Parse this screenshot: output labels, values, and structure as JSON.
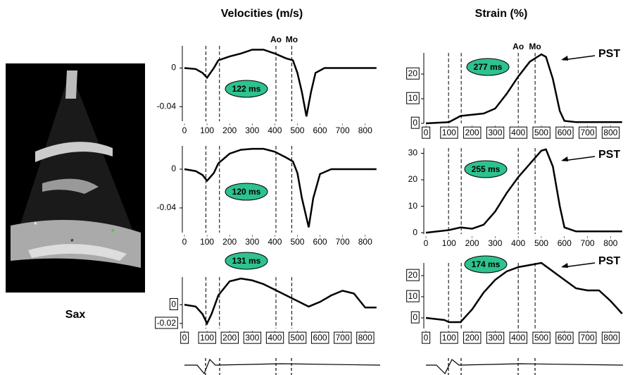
{
  "image_label": "Sax",
  "chart_data": [
    {
      "type": "line",
      "title": "Velocities (m/s)",
      "x": [
        0,
        50,
        80,
        100,
        130,
        150,
        200,
        250,
        300,
        350,
        400,
        450,
        480,
        500,
        520,
        540,
        560,
        580,
        620,
        700,
        800,
        850
      ],
      "series": [
        {
          "color": "#000000",
          "values": [
            0,
            -0.001,
            -0.005,
            -0.01,
            0,
            0.008,
            0.012,
            0.015,
            0.019,
            0.019,
            0.015,
            0.01,
            0.008,
            -0.005,
            -0.025,
            -0.05,
            -0.025,
            -0.005,
            0,
            0,
            0,
            0
          ]
        }
      ],
      "xlim": [
        0,
        860
      ],
      "ylim": [
        -0.055,
        0.023
      ],
      "xticks": [
        0,
        100,
        200,
        300,
        400,
        500,
        600,
        700,
        800
      ],
      "yticks": [
        0,
        -0.04
      ],
      "tick_boxes": false,
      "vlines": [
        95,
        155,
        405,
        475
      ],
      "vline_labels": [
        null,
        null,
        "Ao",
        "Mo"
      ],
      "duration_label": "122 ms"
    },
    {
      "type": "line",
      "x": [
        0,
        50,
        80,
        100,
        130,
        150,
        200,
        250,
        300,
        350,
        400,
        450,
        480,
        500,
        520,
        550,
        570,
        600,
        650,
        700,
        800,
        850
      ],
      "series": [
        {
          "color": "#000000",
          "values": [
            0,
            -0.002,
            -0.006,
            -0.012,
            -0.004,
            0.006,
            0.016,
            0.02,
            0.021,
            0.021,
            0.018,
            0.012,
            0.008,
            -0.004,
            -0.03,
            -0.06,
            -0.03,
            -0.005,
            0,
            0,
            0,
            0
          ]
        }
      ],
      "xlim": [
        0,
        860
      ],
      "ylim": [
        -0.0655,
        0.024
      ],
      "xticks": [
        0,
        100,
        200,
        300,
        400,
        500,
        600,
        700,
        800
      ],
      "yticks": [
        0,
        -0.04
      ],
      "tick_boxes": false,
      "vlines": [
        95,
        155,
        405,
        475
      ],
      "duration_label": "120 ms"
    },
    {
      "type": "line",
      "x": [
        0,
        50,
        80,
        100,
        120,
        150,
        200,
        250,
        300,
        350,
        400,
        450,
        500,
        550,
        600,
        650,
        700,
        750,
        800,
        850
      ],
      "series": [
        {
          "color": "#000000",
          "values": [
            0,
            -0.002,
            -0.01,
            -0.02,
            -0.01,
            0.01,
            0.025,
            0.028,
            0.026,
            0.022,
            0.016,
            0.01,
            0.004,
            -0.002,
            0.003,
            0.01,
            0.015,
            0.012,
            -0.003,
            -0.003
          ]
        }
      ],
      "xlim": [
        0,
        860
      ],
      "ylim": [
        -0.0254,
        0.0296
      ],
      "xticks": [
        0,
        100,
        200,
        300,
        400,
        500,
        600,
        700,
        800
      ],
      "yticks": [
        0,
        -0.02
      ],
      "tick_boxes": true,
      "vlines": [
        95,
        155,
        405,
        475
      ],
      "duration_label": "131 ms"
    },
    {
      "type": "line",
      "title": "Strain (%)",
      "x": [
        0,
        100,
        150,
        200,
        250,
        300,
        350,
        400,
        450,
        500,
        520,
        550,
        580,
        600,
        650,
        850
      ],
      "series": [
        {
          "color": "#000000",
          "values": [
            0,
            0.5,
            3,
            3.5,
            4,
            6,
            12,
            19,
            25,
            28,
            27,
            18,
            5,
            1,
            0.5,
            0.5
          ]
        }
      ],
      "xlim": [
        0,
        860
      ],
      "ylim": [
        0,
        28.6
      ],
      "xticks": [
        0,
        100,
        200,
        300,
        400,
        500,
        600,
        700,
        800
      ],
      "yticks": [
        0,
        10,
        20
      ],
      "tick_boxes": true,
      "vlines": [
        98,
        153,
        400,
        473
      ],
      "vline_labels": [
        null,
        null,
        "Ao",
        "Mo"
      ],
      "duration_label": "277 ms",
      "callout": "PST"
    },
    {
      "type": "line",
      "x": [
        0,
        100,
        150,
        200,
        250,
        300,
        350,
        400,
        450,
        500,
        520,
        550,
        580,
        600,
        650,
        850
      ],
      "series": [
        {
          "color": "#000000",
          "values": [
            0,
            1,
            2,
            1.5,
            3,
            8,
            15,
            21,
            26,
            31,
            31.5,
            25,
            10,
            2,
            0.5,
            0.5
          ]
        }
      ],
      "xlim": [
        0,
        860
      ],
      "ylim": [
        -0.5,
        32
      ],
      "xticks": [
        0,
        100,
        200,
        300,
        400,
        500,
        600,
        700,
        800
      ],
      "yticks": [
        0,
        10,
        20,
        30
      ],
      "tick_boxes": false,
      "vlines": [
        98,
        153,
        400,
        473
      ],
      "duration_label": "255 ms",
      "callout": "PST"
    },
    {
      "type": "line",
      "x": [
        0,
        80,
        100,
        150,
        200,
        250,
        300,
        350,
        400,
        450,
        500,
        550,
        600,
        650,
        700,
        750,
        800,
        850
      ],
      "series": [
        {
          "color": "#000000",
          "values": [
            0,
            -1,
            -2,
            -2,
            4,
            12,
            18,
            22,
            24,
            25,
            26,
            22,
            18,
            14,
            13,
            13,
            8,
            2
          ]
        }
      ],
      "xlim": [
        0,
        860
      ],
      "ylim": [
        -5,
        26
      ],
      "xticks": [
        0,
        100,
        200,
        300,
        400,
        500,
        600,
        700,
        800
      ],
      "yticks": [
        0,
        10,
        20
      ],
      "tick_boxes": true,
      "vlines": [
        98,
        153,
        400,
        473
      ],
      "duration_label": "174 ms",
      "callout": "PST"
    }
  ]
}
